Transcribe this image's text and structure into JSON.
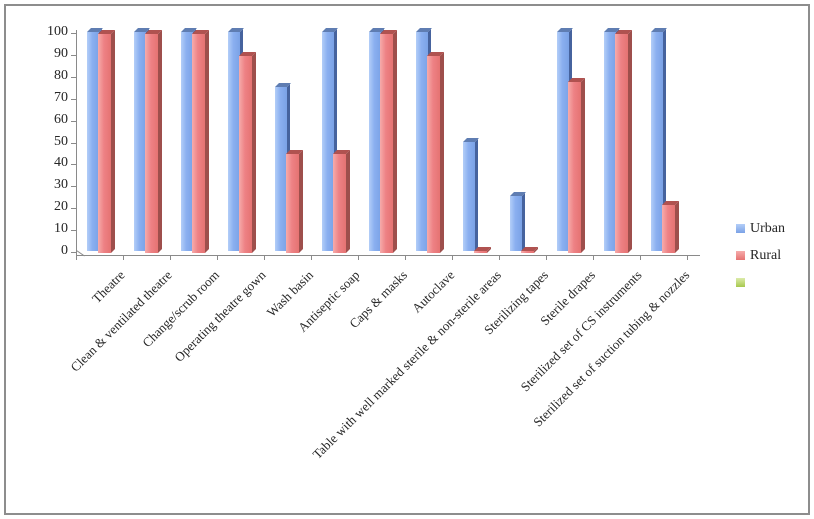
{
  "chart_data": {
    "type": "bar",
    "title": "",
    "categories": [
      "Theatre",
      "Clean & ventilated theatre",
      "Change/scrub room",
      "Operating theatre gown",
      "Wash basin",
      "Antiseptic soap",
      "Caps & masks",
      "Autoclave",
      "Table with well marked sterile & non-sterile areas",
      "Sterilizing tapes",
      "Sterile drapes",
      "Sterilized set of CS instruments",
      "Sterilized set of suction tubing & nozzles"
    ],
    "series": [
      {
        "name": "Urban",
        "values": [
          100,
          100,
          100,
          100,
          75,
          100,
          100,
          100,
          50,
          25,
          100,
          100,
          100
        ],
        "color_light": "#b3cef8",
        "color": "#8aaff0",
        "color_dark": "#7ba2e6",
        "color_top": "#5f7db2",
        "color_side": "#46639e"
      },
      {
        "name": "Rural",
        "values": [
          100,
          100,
          100,
          90,
          45,
          45,
          100,
          90,
          1,
          1,
          78,
          100,
          22
        ],
        "color_light": "#f6acab",
        "color": "#ee8285",
        "color_dark": "#e57372",
        "color_top": "#b05250",
        "color_side": "#9e4f4c"
      },
      {
        "name": "",
        "values": [],
        "color_light": "#dcebaa",
        "color": "#bcd76c",
        "color_dark": "#a7c84e",
        "color_top": "#8aa83e",
        "color_side": "#7a9636"
      }
    ],
    "ylim": [
      0,
      100
    ],
    "ytick_step": 10,
    "grid": false,
    "legend_position": "right",
    "axis_color": "#8a8a8a",
    "text_color": "#262626"
  }
}
